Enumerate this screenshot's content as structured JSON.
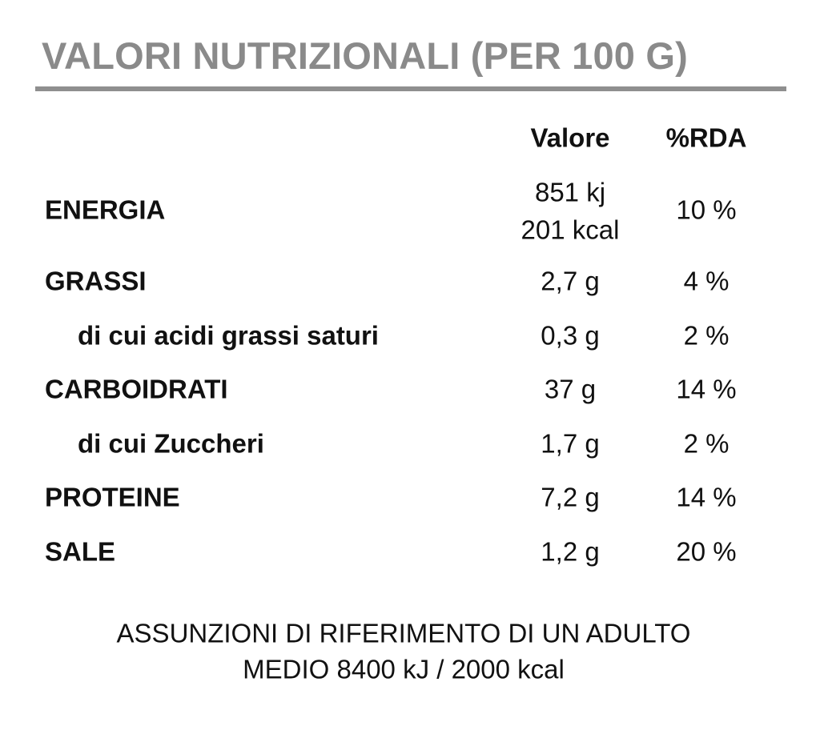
{
  "header": {
    "title": "VALORI NUTRIZIONALI (PER 100 G)"
  },
  "table": {
    "columns": [
      "Valore",
      "%RDA"
    ],
    "rows": [
      {
        "label": "ENERGIA",
        "value": [
          "851 kj",
          "201 kcal"
        ],
        "rda": "10 %"
      },
      {
        "label": "GRASSI",
        "value": [
          "2,7 g"
        ],
        "rda": "4 %",
        "sub": [
          {
            "label": "di cui acidi grassi saturi",
            "value": [
              "0,3 g"
            ],
            "rda": "2 %"
          }
        ]
      },
      {
        "label": "CARBOIDRATI",
        "value": [
          "37 g"
        ],
        "rda": "14 %",
        "sub": [
          {
            "label": "di cui Zuccheri",
            "value": [
              "1,7 g"
            ],
            "rda": "2 %"
          }
        ]
      },
      {
        "label": "PROTEINE",
        "value": [
          "7,2 g"
        ],
        "rda": "14 %"
      },
      {
        "label": "SALE",
        "value": [
          "1,2 g"
        ],
        "rda": "20 %"
      }
    ]
  },
  "footer": {
    "lines": [
      "ASSUNZIONI DI RIFERIMENTO DI UN ADULTO",
      "MEDIO 8400 kJ / 2000 kcal"
    ]
  }
}
